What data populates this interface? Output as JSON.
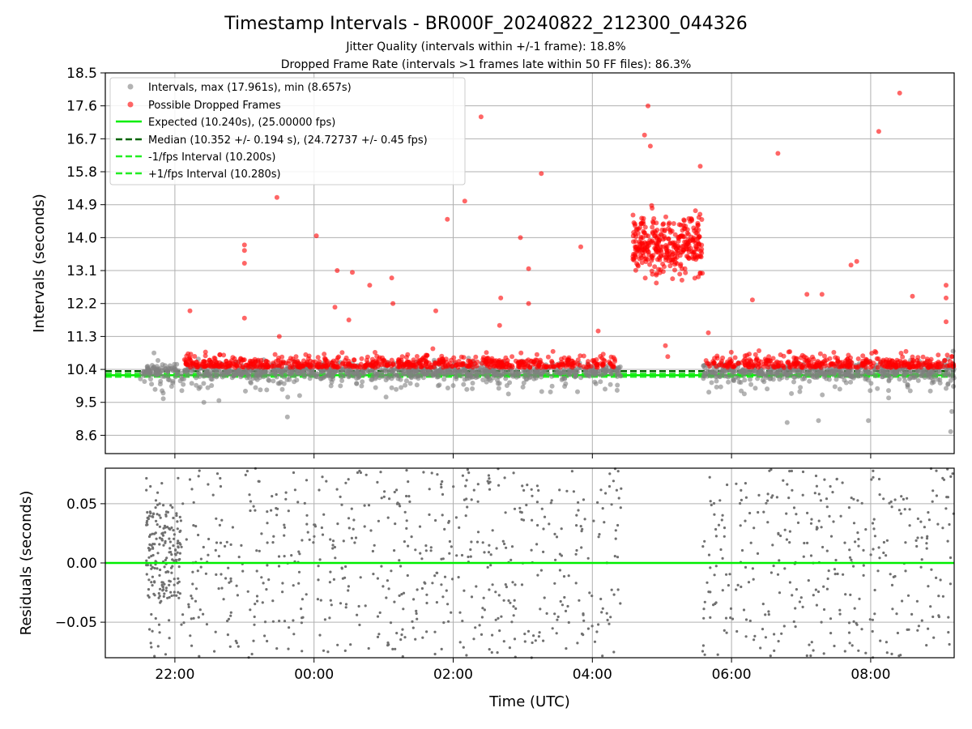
{
  "title": "Timestamp Intervals - BR000F_20240822_212300_044326",
  "subtitle_1": "Jitter Quality (intervals within +/-1 frame): 18.8%",
  "subtitle_2": "Dropped Frame Rate (intervals >1 frames late within 50 FF files): 86.3%",
  "colors": {
    "intervals": "#808080",
    "dropped": "#ff0000",
    "expected": "#00ee00",
    "median": "#006400",
    "fps_interval": "#22ee22",
    "grid": "#b0b0b0",
    "residual_points": "#707070"
  },
  "chart_data": [
    {
      "type": "scatter",
      "title": "",
      "xlabel": "",
      "ylabel": "Intervals (seconds)",
      "x_range": [
        "21:00",
        "09:12"
      ],
      "ylim": [
        8.1,
        18.5
      ],
      "y_ticks": [
        "18.5",
        "17.6",
        "16.7",
        "15.8",
        "14.9",
        "14.0",
        "13.1",
        "12.2",
        "11.3",
        "10.4",
        "9.5",
        "8.6"
      ],
      "grid": true,
      "legend_position": "upper-left",
      "legend": [
        "Intervals, max (17.961s), min (8.657s)",
        "Possible Dropped Frames",
        "Expected (10.240s), (25.00000 fps)",
        "Median (10.352 +/- 0.194 s), (24.72737 +/- 0.45 fps)",
        "-1/fps Interval (10.200s)",
        "+1/fps Interval (10.280s)"
      ],
      "reference_lines": [
        {
          "name": "Expected",
          "y": 10.24
        },
        {
          "name": "Median",
          "y": 10.352
        },
        {
          "name": "-1/fps Interval",
          "y": 10.2
        },
        {
          "name": "+1/fps Interval",
          "y": 10.28
        }
      ],
      "series": [
        {
          "name": "Intervals",
          "max": 17.961,
          "min": 8.657,
          "typical_center": 10.35,
          "active_periods": [
            [
              "21:30",
              "04:25"
            ],
            [
              "05:35",
              "09:12"
            ]
          ]
        },
        {
          "name": "Possible Dropped Frames",
          "clusters": [
            {
              "x_range": [
                "22:08",
                "04:20"
              ],
              "y_center": 10.45
            },
            {
              "x_range": [
                "05:38",
                "09:12"
              ],
              "y_center": 10.45
            },
            {
              "x_range": [
                "04:35",
                "05:35"
              ],
              "y_center": 13.8
            }
          ],
          "points": [
            [
              "22:13",
              12.0
            ],
            [
              "23:00",
              13.8
            ],
            [
              "23:00",
              13.65
            ],
            [
              "23:00",
              13.3
            ],
            [
              "23:00",
              11.8
            ],
            [
              "23:28",
              15.1
            ],
            [
              "23:30",
              11.3
            ],
            [
              "00:02",
              14.05
            ],
            [
              "00:18",
              12.1
            ],
            [
              "00:20",
              13.1
            ],
            [
              "00:30",
              11.75
            ],
            [
              "00:33",
              13.05
            ],
            [
              "00:48",
              12.7
            ],
            [
              "01:07",
              12.9
            ],
            [
              "01:08",
              12.2
            ],
            [
              "01:45",
              12.0
            ],
            [
              "01:55",
              14.5
            ],
            [
              "02:10",
              15.0
            ],
            [
              "02:24",
              17.3
            ],
            [
              "02:40",
              11.6
            ],
            [
              "02:41",
              12.35
            ],
            [
              "02:58",
              14.0
            ],
            [
              "03:05",
              13.15
            ],
            [
              "03:05",
              12.2
            ],
            [
              "03:16",
              15.75
            ],
            [
              "03:50",
              13.75
            ],
            [
              "04:05",
              11.45
            ],
            [
              "04:45",
              16.8
            ],
            [
              "04:48",
              17.6
            ],
            [
              "04:50",
              16.5
            ],
            [
              "05:03",
              11.05
            ],
            [
              "05:05",
              10.75
            ],
            [
              "05:33",
              15.95
            ],
            [
              "05:40",
              11.4
            ],
            [
              "06:18",
              12.3
            ],
            [
              "06:40",
              16.3
            ],
            [
              "07:05",
              12.45
            ],
            [
              "07:18",
              12.45
            ],
            [
              "07:43",
              13.25
            ],
            [
              "07:48",
              13.35
            ],
            [
              "08:07",
              16.9
            ],
            [
              "08:25",
              17.95
            ],
            [
              "08:36",
              12.4
            ],
            [
              "09:05",
              12.7
            ],
            [
              "09:05",
              12.35
            ],
            [
              "09:05",
              11.7
            ]
          ]
        }
      ]
    },
    {
      "type": "scatter",
      "title": "",
      "xlabel": "Time (UTC)",
      "ylabel": "Residuals (seconds)",
      "x_range": [
        "21:00",
        "09:12"
      ],
      "x_ticks": [
        "22:00",
        "00:00",
        "02:00",
        "04:00",
        "06:00",
        "08:00"
      ],
      "ylim": [
        -0.08,
        0.08
      ],
      "y_ticks": [
        "0.05",
        "0.00",
        "−0.05"
      ],
      "grid": true,
      "reference_lines": [
        {
          "name": "zero",
          "y": 0.0
        }
      ],
      "series": [
        {
          "name": "Residuals",
          "active_periods": [
            [
              "21:35",
              "04:25"
            ],
            [
              "05:35",
              "09:12"
            ]
          ],
          "spread": [
            -0.08,
            0.08
          ],
          "dense_cluster": {
            "x_range": [
              "21:35",
              "22:05"
            ],
            "y_range": [
              -0.03,
              0.05
            ]
          }
        }
      ]
    }
  ]
}
